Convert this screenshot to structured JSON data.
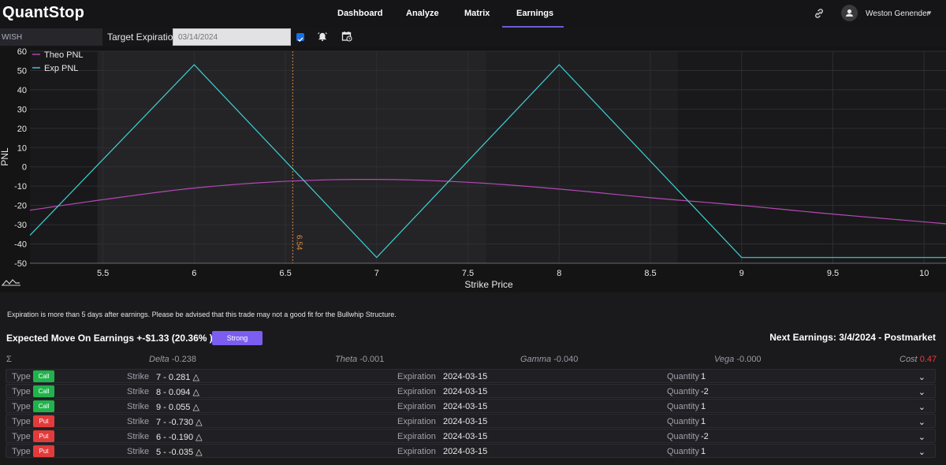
{
  "app": {
    "title": "QuantStop"
  },
  "nav": {
    "links": [
      "Dashboard",
      "Analyze",
      "Matrix",
      "Earnings"
    ],
    "active": "Earnings",
    "user": "Weston Genender"
  },
  "toolbar": {
    "ticker": "WISH",
    "target_label": "Target Expiration",
    "date_placeholder": "03/14/2024",
    "checkbox_checked": true
  },
  "chart_data": {
    "type": "line",
    "xlabel": "Strike Price",
    "ylabel": "PNL",
    "xlim": [
      5.1,
      10.12
    ],
    "ylim": [
      -50,
      60
    ],
    "x_ticks": [
      5.5,
      6,
      6.5,
      7,
      7.5,
      8,
      8.5,
      9,
      9.5,
      10
    ],
    "y_ticks": [
      60,
      50,
      40,
      30,
      20,
      10,
      0,
      -10,
      -20,
      -30,
      -40,
      -50
    ],
    "grid": true,
    "legend": "top-left",
    "marker": {
      "x": 6.54,
      "label": "6.54"
    },
    "series": [
      {
        "name": "Theo PNL",
        "color": "#b548b5",
        "x": [
          5.1,
          5.5,
          6.0,
          6.5,
          7.0,
          7.5,
          8.0,
          8.5,
          9.0,
          9.5,
          10.12
        ],
        "y": [
          -22.5,
          -17,
          -11,
          -7.5,
          -6.5,
          -8,
          -11.5,
          -16,
          -20,
          -24.5,
          -29.5
        ]
      },
      {
        "name": "Exp PNL",
        "color": "#3ed2d4",
        "x": [
          5.1,
          6.0,
          7.0,
          8.0,
          9.0,
          10.12
        ],
        "y": [
          -35.5,
          53,
          -47,
          53,
          -47,
          -47
        ]
      }
    ]
  },
  "notice": "Expiration is more than 5 days after earnings. Please be advised that this trade may not a good fit for the Bullwhip Structure.",
  "expected_move": "Expected Move On Earnings +-$1.33 (20.36% )",
  "strength_label": "Strong",
  "next_earnings": "Next Earnings: 3/4/2024 - Postmarket",
  "greeks": {
    "sigma": "Σ",
    "delta_label": "Delta",
    "delta": "-0.238",
    "theta_label": "Theta",
    "theta": "-0.001",
    "gamma_label": "Gamma",
    "gamma": "-0.040",
    "vega_label": "Vega",
    "vega": "-0.000",
    "cost_label": "Cost",
    "cost": "0.47"
  },
  "leg_labels": {
    "type": "Type",
    "strike": "Strike",
    "expiration": "Expiration",
    "quantity": "Quantity"
  },
  "legs": [
    {
      "type": "Call",
      "strike": "7 - 0.281 △",
      "expiration": "2024-03-15",
      "quantity": "1"
    },
    {
      "type": "Call",
      "strike": "8 - 0.094 △",
      "expiration": "2024-03-15",
      "quantity": "-2"
    },
    {
      "type": "Call",
      "strike": "9 - 0.055 △",
      "expiration": "2024-03-15",
      "quantity": "1"
    },
    {
      "type": "Put",
      "strike": "7 - -0.730 △",
      "expiration": "2024-03-15",
      "quantity": "1"
    },
    {
      "type": "Put",
      "strike": "6 - -0.190 △",
      "expiration": "2024-03-15",
      "quantity": "-2"
    },
    {
      "type": "Put",
      "strike": "5 - -0.035 △",
      "expiration": "2024-03-15",
      "quantity": "1"
    }
  ]
}
